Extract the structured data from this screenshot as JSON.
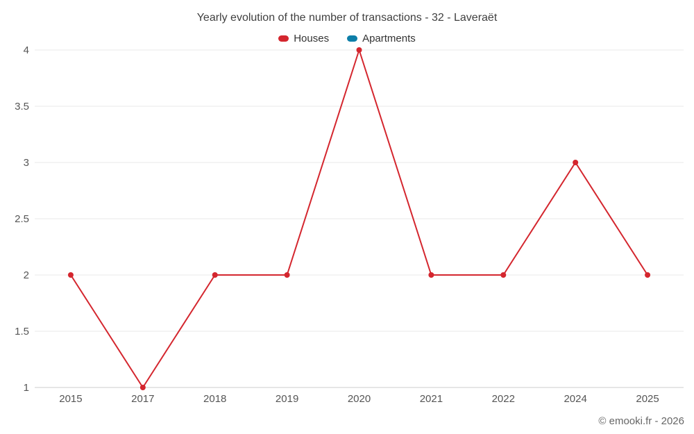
{
  "chart_data": {
    "type": "line",
    "title": "Yearly evolution of the number of transactions - 32 - Laveraët",
    "categories": [
      "2015",
      "2017",
      "2018",
      "2019",
      "2020",
      "2021",
      "2022",
      "2024",
      "2025"
    ],
    "series": [
      {
        "name": "Houses",
        "color": "#d4262e",
        "values": [
          2,
          1,
          2,
          2,
          4,
          2,
          2,
          3,
          2
        ]
      },
      {
        "name": "Apartments",
        "color": "#0d7ea8",
        "values": []
      }
    ],
    "ylim": [
      1,
      4
    ],
    "yticks": [
      1,
      1.5,
      2,
      2.5,
      3,
      3.5,
      4
    ],
    "xlabel": "",
    "ylabel": "",
    "grid": "horizontal",
    "legend_position": "top"
  },
  "footer": {
    "credit": "© emooki.fr - 2026"
  }
}
